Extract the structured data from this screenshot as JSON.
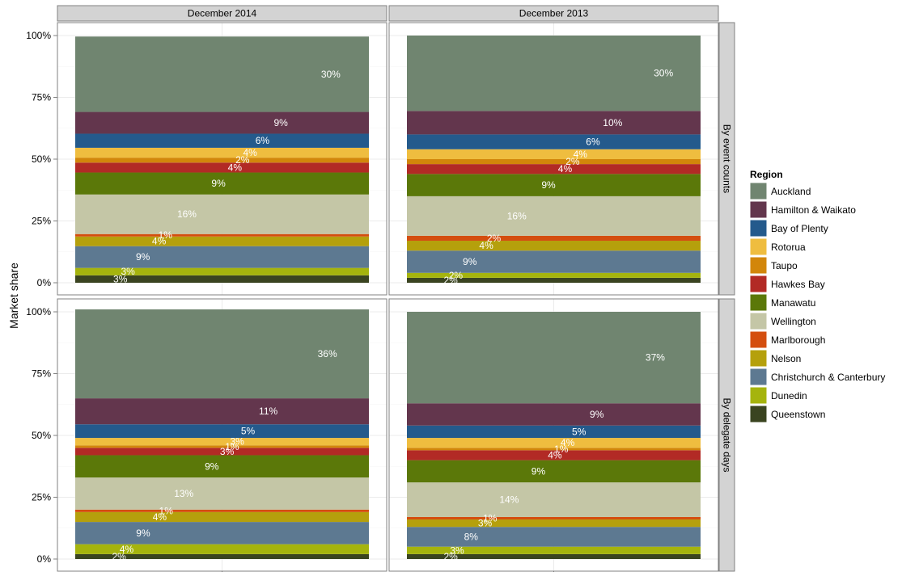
{
  "chart_data": {
    "type": "bar",
    "stacked": true,
    "facets": {
      "columns": [
        "December 2014",
        "December 2013"
      ],
      "rows": [
        "By event counts",
        "By delegate days"
      ]
    },
    "ylabel": "Market share",
    "ylim": [
      0,
      100
    ],
    "y_ticks": [
      "0%",
      "25%",
      "50%",
      "75%",
      "100%"
    ],
    "grid": true,
    "legend_title": "Region",
    "legend_position": "right",
    "series": [
      {
        "name": "Auckland",
        "color": "#708570"
      },
      {
        "name": "Hamilton & Waikato",
        "color": "#63364d"
      },
      {
        "name": "Bay of Plenty",
        "color": "#245a8c"
      },
      {
        "name": "Rotorua",
        "color": "#efbd3f"
      },
      {
        "name": "Taupo",
        "color": "#d2860a"
      },
      {
        "name": "Hawkes Bay",
        "color": "#b22a25"
      },
      {
        "name": "Manawatu",
        "color": "#5b7809"
      },
      {
        "name": "Wellington",
        "color": "#c4c6a6"
      },
      {
        "name": "Marlborough",
        "color": "#d44e0f"
      },
      {
        "name": "Nelson",
        "color": "#b5a00c"
      },
      {
        "name": "Christchurch & Canterbury",
        "color": "#5d7991"
      },
      {
        "name": "Dunedin",
        "color": "#a5b40d"
      },
      {
        "name": "Queenstown",
        "color": "#3a4420"
      }
    ],
    "panels": [
      {
        "column": "December 2014",
        "row": "By event counts",
        "values": [
          30.5,
          8.8,
          5.7,
          4.0,
          2.0,
          4.0,
          8.9,
          16.0,
          1.0,
          3.9,
          8.8,
          3.0,
          3.0
        ],
        "labels": [
          "30%",
          "9%",
          "6%",
          "4%",
          "2%",
          "4%",
          "9%",
          "16%",
          "1%",
          "4%",
          "9%",
          "3%",
          "3%"
        ]
      },
      {
        "column": "December 2013",
        "row": "By event counts",
        "values": [
          30.5,
          9.5,
          6.0,
          4.0,
          2.0,
          4.0,
          9.0,
          16.0,
          2.0,
          4.0,
          9.0,
          2.0,
          2.0
        ],
        "labels": [
          "30%",
          "10%",
          "6%",
          "4%",
          "2%",
          "4%",
          "9%",
          "16%",
          "2%",
          "4%",
          "9%",
          "2%",
          "2%"
        ]
      },
      {
        "column": "December 2014",
        "row": "By delegate days",
        "values": [
          36.0,
          10.5,
          5.5,
          3.0,
          1.0,
          3.0,
          9.0,
          13.0,
          1.0,
          4.0,
          9.0,
          4.0,
          2.0
        ],
        "labels": [
          "36%",
          "11%",
          "5%",
          "3%",
          "1%",
          "3%",
          "9%",
          "13%",
          "1%",
          "4%",
          "9%",
          "4%",
          "2%"
        ]
      },
      {
        "column": "December 2013",
        "row": "By delegate days",
        "values": [
          37.0,
          9.0,
          5.0,
          4.0,
          1.0,
          4.0,
          9.0,
          14.0,
          1.0,
          3.0,
          8.0,
          3.0,
          2.0
        ],
        "labels": [
          "37%",
          "9%",
          "5%",
          "4%",
          "1%",
          "4%",
          "9%",
          "14%",
          "1%",
          "3%",
          "8%",
          "3%",
          "2%"
        ]
      }
    ]
  }
}
